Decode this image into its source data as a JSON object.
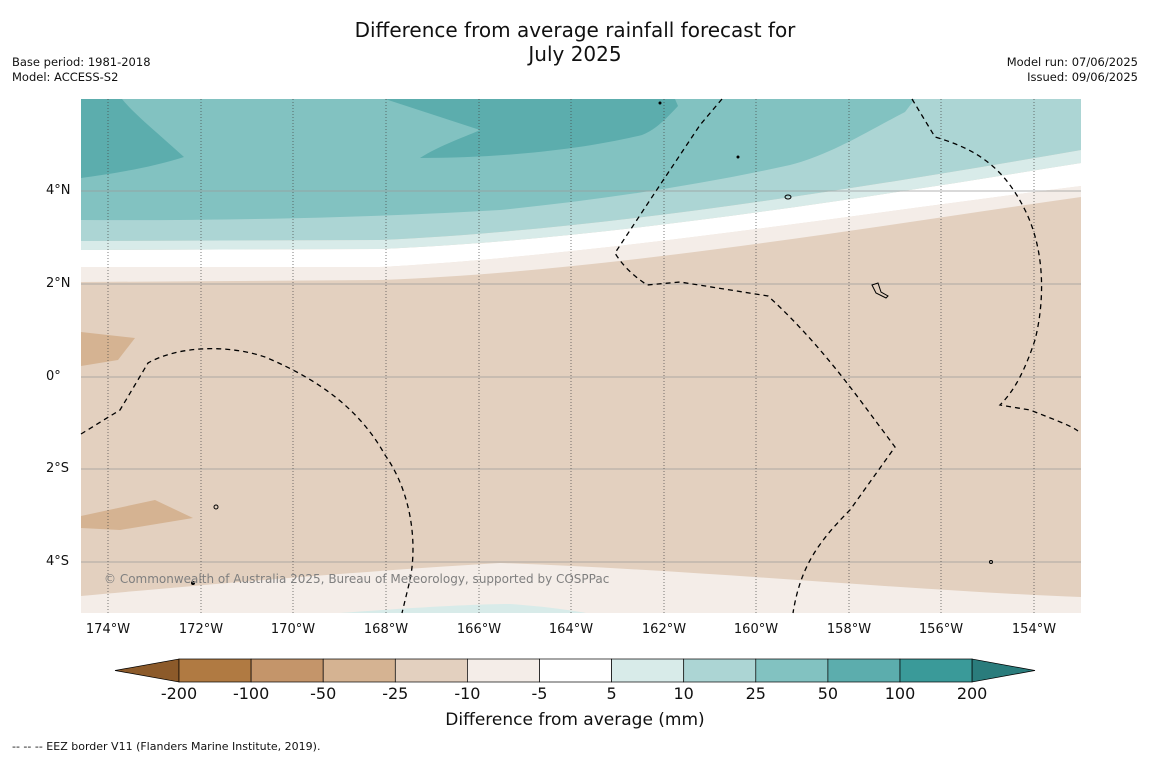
{
  "title_line1": "Difference from average rainfall forecast for",
  "title_line2": "July 2025",
  "meta_left": {
    "base_period": "Base period: 1981-2018",
    "model": "Model: ACCESS-S2"
  },
  "meta_right": {
    "model_run": "Model run: 07/06/2025",
    "issued": "Issued: 09/06/2025"
  },
  "map": {
    "lat_labels": [
      "4°N",
      "2°N",
      "0°",
      "2°S",
      "4°S"
    ],
    "lon_labels": [
      "174°W",
      "172°W",
      "170°W",
      "168°W",
      "166°W",
      "164°W",
      "162°W",
      "160°W",
      "158°W",
      "156°W",
      "154°W"
    ],
    "copyright": "© Commonwealth of Australia 2025, Bureau of Meteorology, supported by COSPPac",
    "dashed_line_meaning": "EEZ border"
  },
  "colorbar": {
    "title": "Difference from average (mm)",
    "tick_labels": [
      "-200",
      "-100",
      "-50",
      "-25",
      "-10",
      "-5",
      "5",
      "10",
      "25",
      "50",
      "100",
      "200"
    ],
    "colors": {
      "below_-200": "#8c5a2a",
      "-200_-100": "#b07a42",
      "-100_-50": "#c4956a",
      "-50_-25": "#d5b392",
      "-25_-10": "#e3d0bf",
      "-10_-5": "#f4ede8",
      "-5_5": "#ffffff",
      "5_10": "#d8ebe9",
      "10_25": "#acd5d4",
      "25_50": "#82c2c1",
      "50_100": "#5cadad",
      "100_200": "#3a9a99",
      "above_200": "#2a7c7c"
    }
  },
  "footer": "--  --  -- EEZ border V11 (Flanders Marine Institute, 2019)."
}
